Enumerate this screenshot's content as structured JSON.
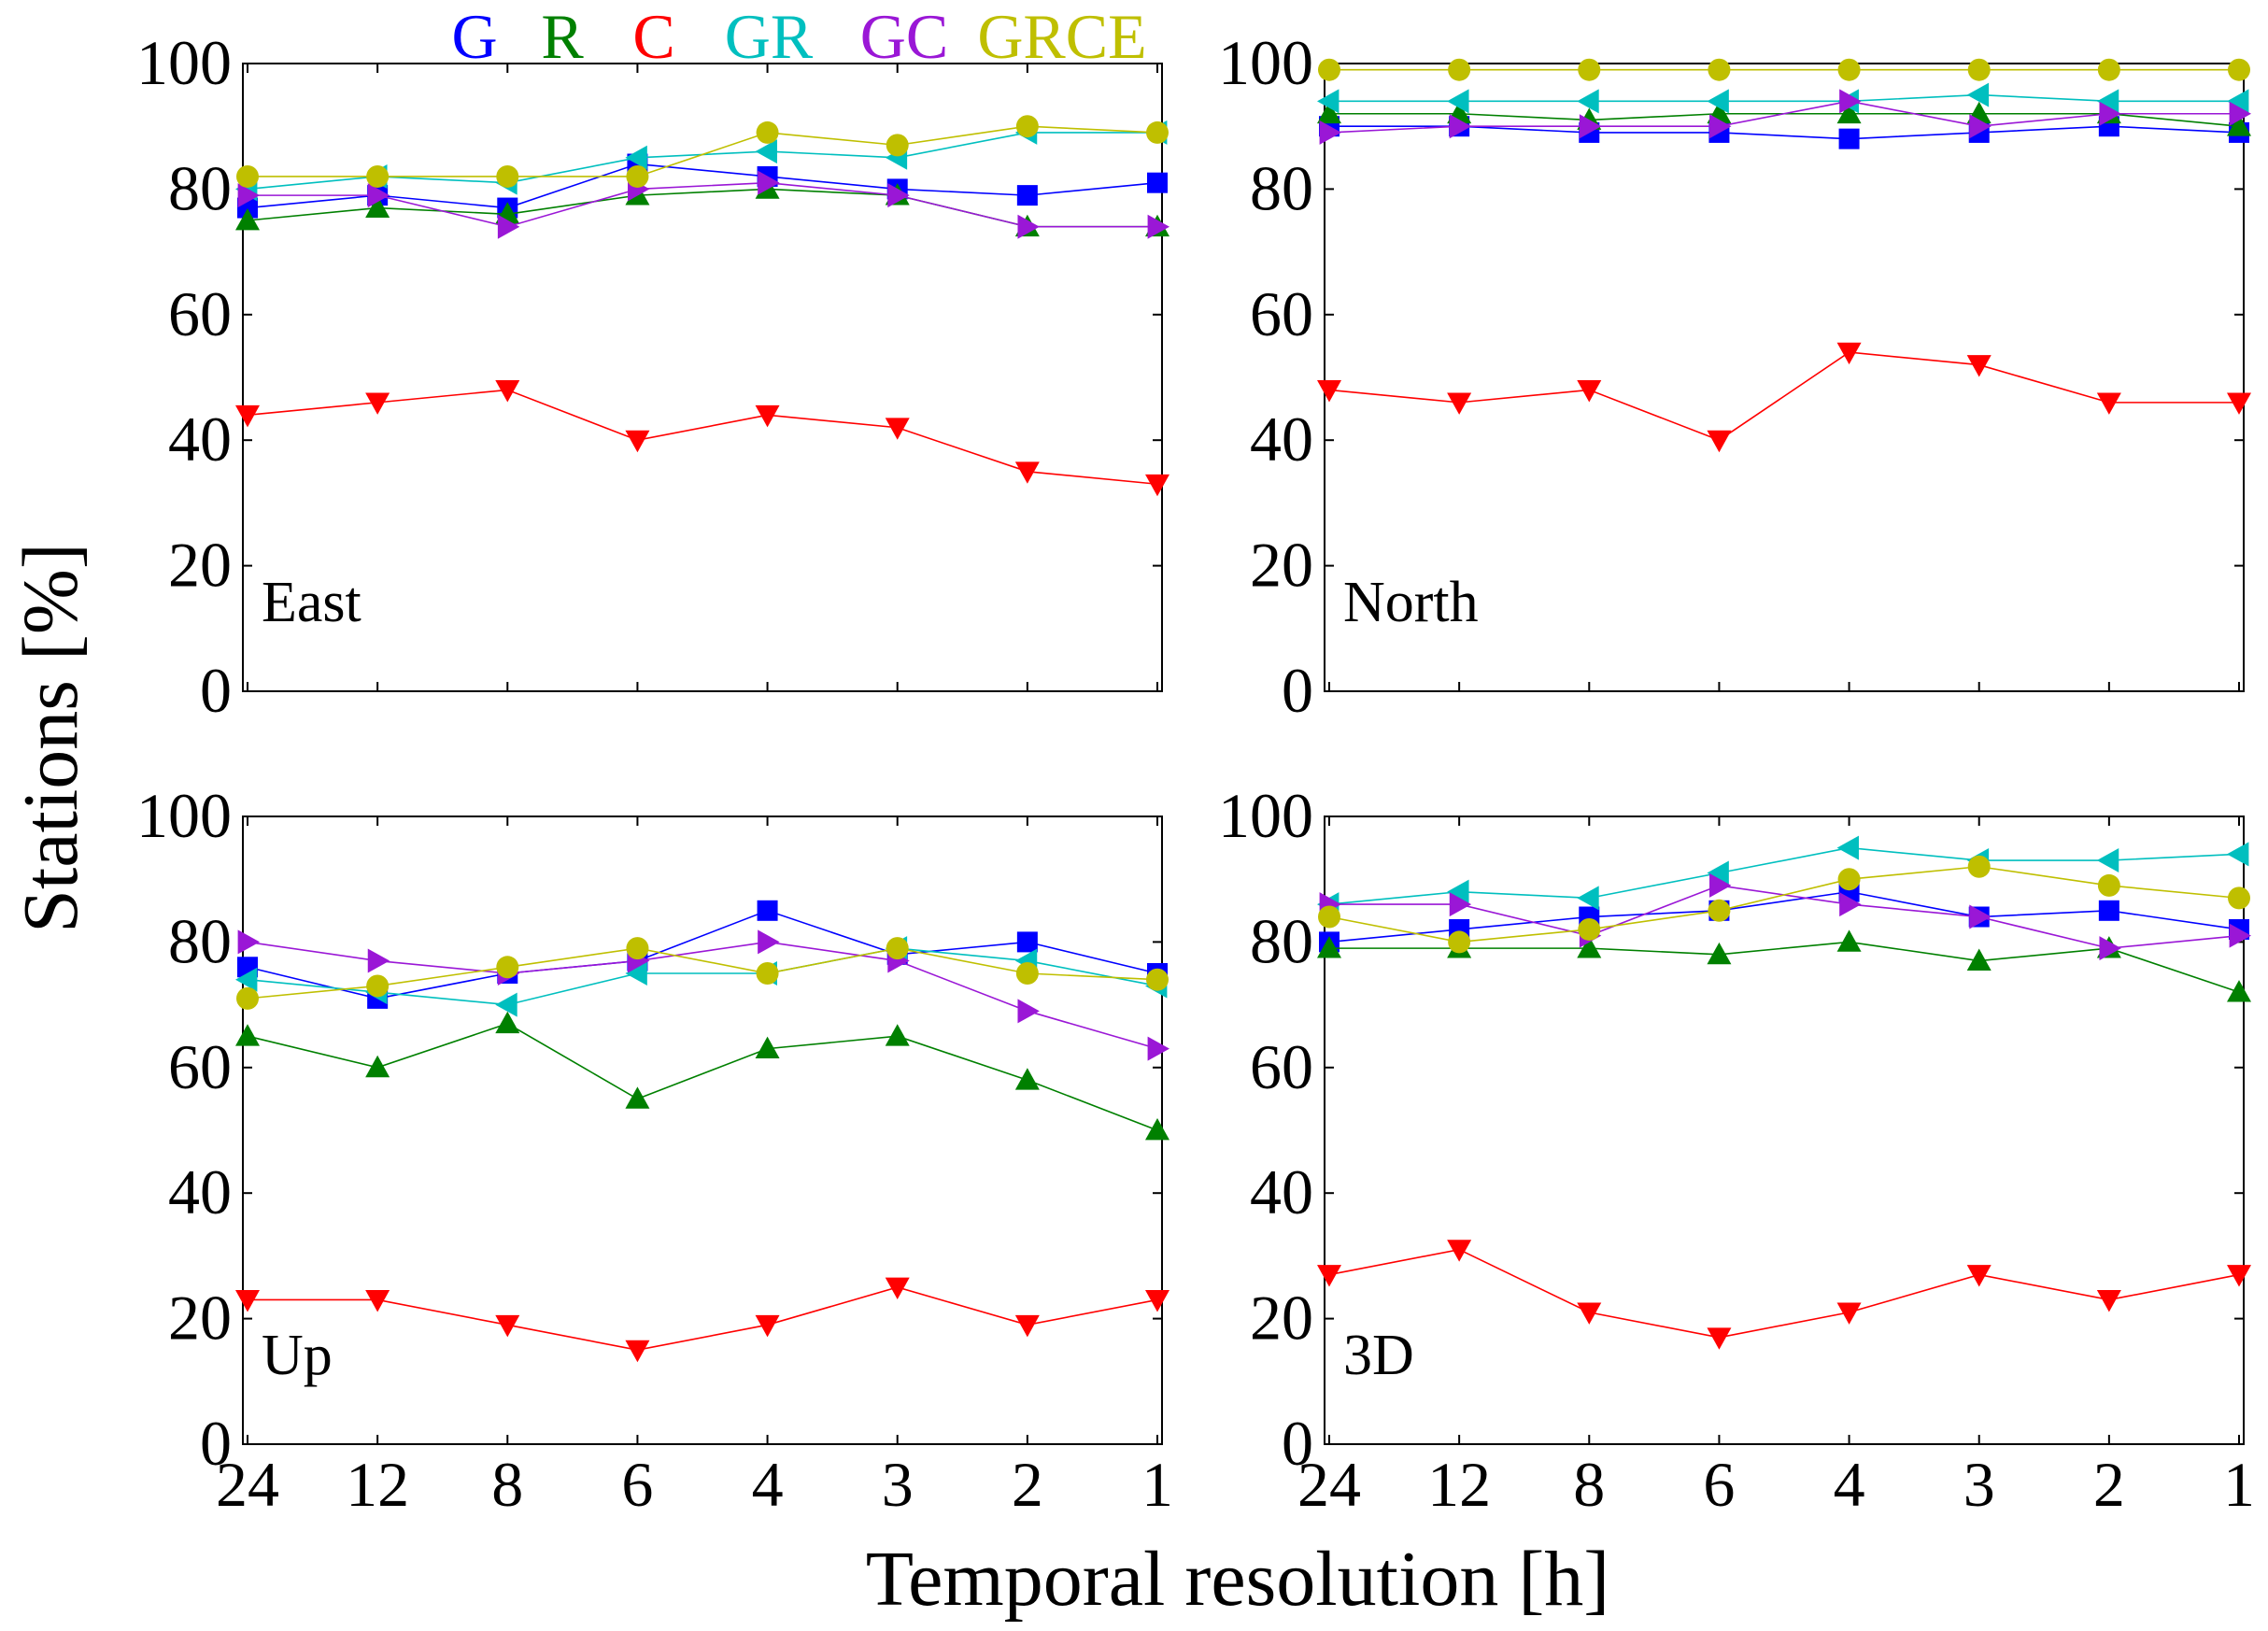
{
  "figure": {
    "ylabel": "Stations [%]",
    "xlabel": "Temporal resolution [h]"
  },
  "legend": [
    {
      "name": "G",
      "color": "#0000ff"
    },
    {
      "name": "R",
      "color": "#008000"
    },
    {
      "name": "C",
      "color": "#ff0000"
    },
    {
      "name": "GR",
      "color": "#00bfbf"
    },
    {
      "name": "GC",
      "color": "#9a17d6"
    },
    {
      "name": "GRCE",
      "color": "#bfbf00"
    }
  ],
  "chart_data": [
    {
      "type": "line",
      "title": "East",
      "categories": [
        "24",
        "12",
        "8",
        "6",
        "4",
        "3",
        "2",
        "1"
      ],
      "ylim": [
        0,
        100
      ],
      "yticks": [
        "0",
        "20",
        "40",
        "60",
        "80",
        "100"
      ],
      "series": [
        {
          "name": "G",
          "marker": "square",
          "color": "#0000ff",
          "values": [
            77,
            79,
            77,
            84,
            82,
            80,
            79,
            81
          ]
        },
        {
          "name": "R",
          "marker": "triangle-up",
          "color": "#008000",
          "values": [
            75,
            77,
            76,
            79,
            80,
            79,
            74,
            74
          ]
        },
        {
          "name": "C",
          "marker": "triangle-down",
          "color": "#ff0000",
          "values": [
            44,
            46,
            48,
            40,
            44,
            42,
            35,
            33
          ]
        },
        {
          "name": "GR",
          "marker": "triangle-left",
          "color": "#00bfbf",
          "values": [
            80,
            82,
            81,
            85,
            86,
            85,
            89,
            89
          ]
        },
        {
          "name": "GC",
          "marker": "triangle-right",
          "color": "#9a17d6",
          "values": [
            79,
            79,
            74,
            80,
            81,
            79,
            74,
            74
          ]
        },
        {
          "name": "GRCE",
          "marker": "circle",
          "color": "#bfbf00",
          "values": [
            82,
            82,
            82,
            82,
            89,
            87,
            90,
            89
          ]
        }
      ]
    },
    {
      "type": "line",
      "title": "North",
      "categories": [
        "24",
        "12",
        "8",
        "6",
        "4",
        "3",
        "2",
        "1"
      ],
      "ylim": [
        0,
        100
      ],
      "yticks": [
        "0",
        "20",
        "40",
        "60",
        "80",
        "100"
      ],
      "series": [
        {
          "name": "G",
          "marker": "square",
          "color": "#0000ff",
          "values": [
            90,
            90,
            89,
            89,
            88,
            89,
            90,
            89
          ]
        },
        {
          "name": "R",
          "marker": "triangle-up",
          "color": "#008000",
          "values": [
            92,
            92,
            91,
            92,
            92,
            92,
            92,
            90
          ]
        },
        {
          "name": "C",
          "marker": "triangle-down",
          "color": "#ff0000",
          "values": [
            48,
            46,
            48,
            40,
            54,
            52,
            46,
            46
          ]
        },
        {
          "name": "GR",
          "marker": "triangle-left",
          "color": "#00bfbf",
          "values": [
            94,
            94,
            94,
            94,
            94,
            95,
            94,
            94
          ]
        },
        {
          "name": "GC",
          "marker": "triangle-right",
          "color": "#9a17d6",
          "values": [
            89,
            90,
            90,
            90,
            94,
            90,
            92,
            92
          ]
        },
        {
          "name": "GRCE",
          "marker": "circle",
          "color": "#bfbf00",
          "values": [
            99,
            99,
            99,
            99,
            99,
            99,
            99,
            99
          ]
        }
      ]
    },
    {
      "type": "line",
      "title": "Up",
      "categories": [
        "24",
        "12",
        "8",
        "6",
        "4",
        "3",
        "2",
        "1"
      ],
      "ylim": [
        0,
        100
      ],
      "yticks": [
        "0",
        "20",
        "40",
        "60",
        "80",
        "100"
      ],
      "series": [
        {
          "name": "G",
          "marker": "square",
          "color": "#0000ff",
          "values": [
            76,
            71,
            75,
            77,
            85,
            78,
            80,
            75
          ]
        },
        {
          "name": "R",
          "marker": "triangle-up",
          "color": "#008000",
          "values": [
            65,
            60,
            67,
            55,
            63,
            65,
            58,
            50
          ]
        },
        {
          "name": "C",
          "marker": "triangle-down",
          "color": "#ff0000",
          "values": [
            23,
            23,
            19,
            15,
            19,
            25,
            19,
            23
          ]
        },
        {
          "name": "GR",
          "marker": "triangle-left",
          "color": "#00bfbf",
          "values": [
            74,
            72,
            70,
            75,
            75,
            79,
            77,
            73
          ]
        },
        {
          "name": "GC",
          "marker": "triangle-right",
          "color": "#9a17d6",
          "values": [
            80,
            77,
            75,
            77,
            80,
            77,
            69,
            63
          ]
        },
        {
          "name": "GRCE",
          "marker": "circle",
          "color": "#bfbf00",
          "values": [
            71,
            73,
            76,
            79,
            75,
            79,
            75,
            74
          ]
        }
      ]
    },
    {
      "type": "line",
      "title": "3D",
      "categories": [
        "24",
        "12",
        "8",
        "6",
        "4",
        "3",
        "2",
        "1"
      ],
      "ylim": [
        0,
        100
      ],
      "yticks": [
        "0",
        "20",
        "40",
        "60",
        "80",
        "100"
      ],
      "series": [
        {
          "name": "G",
          "marker": "square",
          "color": "#0000ff",
          "values": [
            80,
            82,
            84,
            85,
            88,
            84,
            85,
            82
          ]
        },
        {
          "name": "R",
          "marker": "triangle-up",
          "color": "#008000",
          "values": [
            79,
            79,
            79,
            78,
            80,
            77,
            79,
            72
          ]
        },
        {
          "name": "C",
          "marker": "triangle-down",
          "color": "#ff0000",
          "values": [
            27,
            31,
            21,
            17,
            21,
            27,
            23,
            27
          ]
        },
        {
          "name": "GR",
          "marker": "triangle-left",
          "color": "#00bfbf",
          "values": [
            86,
            88,
            87,
            91,
            95,
            93,
            93,
            94
          ]
        },
        {
          "name": "GC",
          "marker": "triangle-right",
          "color": "#9a17d6",
          "values": [
            86,
            86,
            81,
            89,
            86,
            84,
            79,
            81
          ]
        },
        {
          "name": "GRCE",
          "marker": "circle",
          "color": "#bfbf00",
          "values": [
            84,
            80,
            82,
            85,
            90,
            92,
            89,
            87
          ]
        }
      ]
    }
  ]
}
